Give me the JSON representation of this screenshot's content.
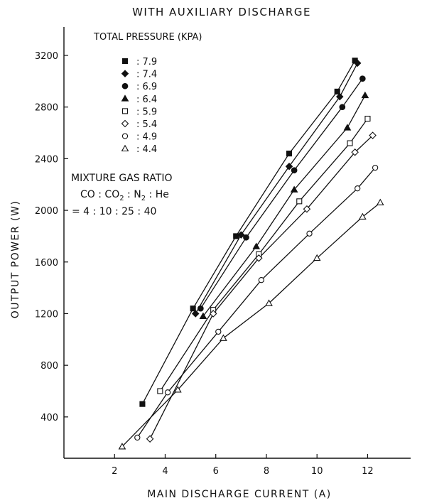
{
  "chart_data": {
    "type": "scatter",
    "title": "WITH AUXILIARY DISCHARGE",
    "xlabel": "MAIN DISCHARGE CURRENT (A)",
    "ylabel": "OUTPUT POWER (W)",
    "xlim": [
      0,
      13.7
    ],
    "ylim": [
      80,
      3420
    ],
    "x_ticks": [
      2,
      4,
      6,
      8,
      10,
      12
    ],
    "y_ticks": [
      400,
      800,
      1200,
      1600,
      2000,
      2400,
      2800,
      3200
    ],
    "x_tick_labels": [
      "2",
      "4",
      "6",
      "8",
      "10",
      "12"
    ],
    "y_tick_labels": [
      "400",
      "800",
      "1200",
      "1600",
      "2000",
      "2400",
      "2800",
      "3200"
    ],
    "grid": false,
    "legend_title": "TOTAL PRESSURE (KPA)",
    "legend_position": "top-left",
    "annotation": {
      "heading": "MIXTURE GAS RATIO",
      "species": [
        "CO",
        "CO",
        "2",
        "N",
        "2",
        "He"
      ],
      "line1": "CO : CO2 : N2 : He",
      "line2": "= 4 : 10 : 25 : 40"
    },
    "series": [
      {
        "name": "7.9",
        "marker": "filled-square",
        "x": [
          3.1,
          5.1,
          6.8,
          8.9,
          10.8,
          11.5
        ],
        "y": [
          500,
          1240,
          1800,
          2440,
          2920,
          3160
        ]
      },
      {
        "name": "7.4",
        "marker": "filled-diamond",
        "x": [
          5.2,
          7.0,
          8.9,
          10.9,
          11.6
        ],
        "y": [
          1200,
          1810,
          2340,
          2880,
          3140
        ]
      },
      {
        "name": "6.9",
        "marker": "filled-circle",
        "x": [
          5.4,
          7.2,
          9.1,
          11.0,
          11.8
        ],
        "y": [
          1240,
          1790,
          2310,
          2800,
          3020
        ]
      },
      {
        "name": "6.4",
        "marker": "filled-triangle",
        "x": [
          5.5,
          7.6,
          9.1,
          11.2,
          11.9
        ],
        "y": [
          1180,
          1720,
          2160,
          2640,
          2890
        ]
      },
      {
        "name": "5.9",
        "marker": "open-square",
        "x": [
          3.8,
          5.9,
          7.7,
          9.3,
          11.3,
          12.0
        ],
        "y": [
          600,
          1230,
          1660,
          2070,
          2520,
          2710
        ]
      },
      {
        "name": "5.4",
        "marker": "open-diamond",
        "x": [
          3.4,
          5.9,
          7.7,
          9.6,
          11.5,
          12.2
        ],
        "y": [
          230,
          1200,
          1630,
          2010,
          2450,
          2580
        ]
      },
      {
        "name": "4.9",
        "marker": "open-circle",
        "x": [
          2.9,
          4.1,
          6.1,
          7.8,
          9.7,
          11.6,
          12.3
        ],
        "y": [
          240,
          590,
          1060,
          1460,
          1820,
          2170,
          2330
        ]
      },
      {
        "name": "4.4",
        "marker": "open-triangle",
        "x": [
          2.3,
          4.5,
          6.3,
          8.1,
          10.0,
          11.8,
          12.5
        ],
        "y": [
          170,
          610,
          1010,
          1280,
          1630,
          1950,
          2060
        ]
      }
    ]
  }
}
